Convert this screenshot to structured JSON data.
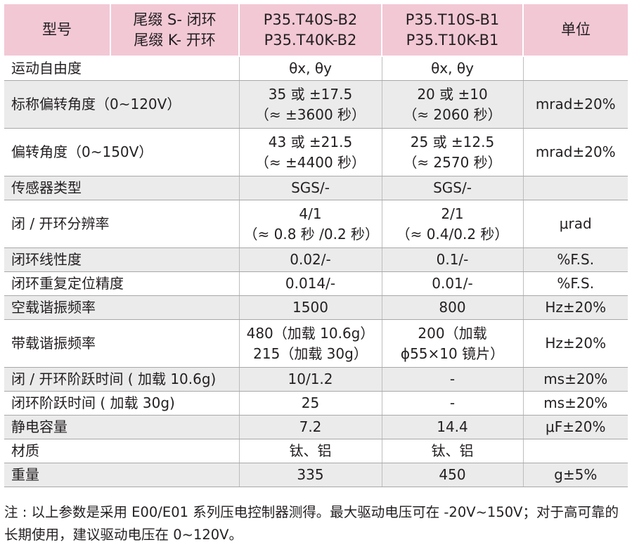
{
  "header": {
    "model_label": "型号",
    "suffix_line1": "尾缀 S- 闭环",
    "suffix_line2": "尾缀 K- 开环",
    "model_a_line1": "P35.T40S-B2",
    "model_a_line2": "P35.T40K-B2",
    "model_b_line1": "P35.T10S-B1",
    "model_b_line2": "P35.T10K-B1",
    "unit_label": "单位"
  },
  "rows": [
    {
      "param": "运动自由度",
      "a1": "θx, θy",
      "a2": "",
      "b1": "θx, θy",
      "b2": "",
      "unit": ""
    },
    {
      "param": "标称偏转角度（0~120V）",
      "a1": "35 或 ±17.5",
      "a2": "（≈ ±3600 秒）",
      "b1": "20 或 ±10",
      "b2": "（≈ 2060 秒）",
      "unit": "mrad±20%"
    },
    {
      "param": "偏转角度（0~150V）",
      "a1": "43 或 ±21.5",
      "a2": "（≈ ±4400 秒）",
      "b1": "25 或 ±12.5",
      "b2": "（≈ 2570 秒）",
      "unit": "mrad±20%"
    },
    {
      "param": "传感器类型",
      "a1": "SGS/-",
      "a2": "",
      "b1": "SGS/-",
      "b2": "",
      "unit": ""
    },
    {
      "param": "闭 / 开环分辨率",
      "a1": "4/1",
      "a2": "（≈ 0.8 秒 /0.2 秒）",
      "b1": "2/1",
      "b2": "（≈ 0.4/0.2 秒）",
      "unit": "μrad"
    },
    {
      "param": "闭环线性度",
      "a1": "0.02/-",
      "a2": "",
      "b1": "0.1/-",
      "b2": "",
      "unit": "%F.S."
    },
    {
      "param": "闭环重复定位精度",
      "a1": "0.014/-",
      "a2": "",
      "b1": "0.01/-",
      "b2": "",
      "unit": "%F.S."
    },
    {
      "param": "空载谐振频率",
      "a1": "1500",
      "a2": "",
      "b1": "800",
      "b2": "",
      "unit": "Hz±20%"
    },
    {
      "param": "带载谐振频率",
      "a1": "480（加载 10.6g）",
      "a2": "215（加载 30g）",
      "b1": "200（加载",
      "b2": "ϕ55×10 镜片）",
      "unit": "Hz±20%"
    },
    {
      "param": "闭 / 开环阶跃时间 ( 加载 10.6g)",
      "a1": "10/1.2",
      "a2": "",
      "b1": "-",
      "b2": "",
      "unit": "ms±20%"
    },
    {
      "param": "闭环阶跃时间 ( 加载 30g)",
      "a1": "25",
      "a2": "",
      "b1": "-",
      "b2": "",
      "unit": "ms±20%"
    },
    {
      "param": "静电容量",
      "a1": "7.2",
      "a2": "",
      "b1": "14.4",
      "b2": "",
      "unit": "μF±20%"
    },
    {
      "param": "材质",
      "a1": "钛、铝",
      "a2": "",
      "b1": "钛、铝",
      "b2": "",
      "unit": ""
    },
    {
      "param": "重量",
      "a1": "335",
      "a2": "",
      "b1": "450",
      "b2": "",
      "unit": "g±5%"
    }
  ],
  "note": "注 : 以上参数是采用 E00/E01 系列压电控制器测得。最大驱动电压可在 -20V~150V；对于高可靠的长期使用，建议驱动电压在 0~120V。"
}
